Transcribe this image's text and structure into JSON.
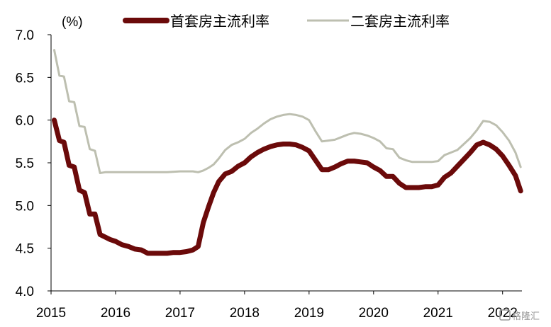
{
  "chart_data": {
    "type": "line",
    "unit_label": "(%)",
    "ylim": [
      4.0,
      7.0
    ],
    "yticks": [
      "4.0",
      "4.5",
      "5.0",
      "5.5",
      "6.0",
      "6.5",
      "7.0"
    ],
    "xlim": [
      2015.0,
      2022.3
    ],
    "xticks": [
      "2015",
      "2016",
      "2017",
      "2018",
      "2019",
      "2020",
      "2021",
      "2022"
    ],
    "legend_position": "top",
    "grid": false,
    "series": [
      {
        "name": "首套房主流利率",
        "color": "#6b0a0a",
        "x": [
          2015.05,
          2015.13,
          2015.2,
          2015.28,
          2015.36,
          2015.44,
          2015.52,
          2015.6,
          2015.68,
          2015.76,
          2015.84,
          2015.92,
          2016.0,
          2016.1,
          2016.2,
          2016.3,
          2016.4,
          2016.5,
          2016.6,
          2016.7,
          2016.8,
          2016.9,
          2017.0,
          2017.1,
          2017.2,
          2017.28,
          2017.36,
          2017.44,
          2017.52,
          2017.6,
          2017.7,
          2017.8,
          2017.9,
          2018.0,
          2018.1,
          2018.2,
          2018.3,
          2018.4,
          2018.5,
          2018.6,
          2018.7,
          2018.8,
          2018.9,
          2019.0,
          2019.1,
          2019.2,
          2019.3,
          2019.4,
          2019.5,
          2019.6,
          2019.7,
          2019.8,
          2019.9,
          2020.0,
          2020.1,
          2020.2,
          2020.3,
          2020.4,
          2020.5,
          2020.6,
          2020.7,
          2020.8,
          2020.9,
          2021.0,
          2021.1,
          2021.2,
          2021.3,
          2021.4,
          2021.5,
          2021.6,
          2021.7,
          2021.8,
          2021.9,
          2022.0,
          2022.1,
          2022.2,
          2022.28
        ],
        "values": [
          6.0,
          5.76,
          5.74,
          5.47,
          5.45,
          5.18,
          5.15,
          4.9,
          4.9,
          4.66,
          4.63,
          4.6,
          4.58,
          4.54,
          4.52,
          4.49,
          4.48,
          4.44,
          4.44,
          4.44,
          4.44,
          4.45,
          4.45,
          4.46,
          4.48,
          4.52,
          4.8,
          4.98,
          5.15,
          5.28,
          5.37,
          5.4,
          5.46,
          5.5,
          5.57,
          5.62,
          5.66,
          5.69,
          5.71,
          5.72,
          5.72,
          5.71,
          5.68,
          5.64,
          5.53,
          5.42,
          5.42,
          5.45,
          5.49,
          5.52,
          5.52,
          5.51,
          5.5,
          5.45,
          5.41,
          5.34,
          5.34,
          5.26,
          5.21,
          5.21,
          5.21,
          5.22,
          5.22,
          5.24,
          5.33,
          5.38,
          5.46,
          5.54,
          5.62,
          5.71,
          5.74,
          5.71,
          5.66,
          5.58,
          5.47,
          5.35,
          5.17
        ]
      },
      {
        "name": "二套房主流利率",
        "color": "#bdbfb0",
        "x": [
          2015.05,
          2015.13,
          2015.2,
          2015.28,
          2015.36,
          2015.44,
          2015.52,
          2015.6,
          2015.68,
          2015.76,
          2015.84,
          2015.92,
          2016.0,
          2016.2,
          2016.4,
          2016.6,
          2016.8,
          2017.0,
          2017.1,
          2017.2,
          2017.28,
          2017.36,
          2017.44,
          2017.52,
          2017.6,
          2017.7,
          2017.8,
          2017.9,
          2018.0,
          2018.1,
          2018.2,
          2018.3,
          2018.4,
          2018.5,
          2018.6,
          2018.7,
          2018.8,
          2018.9,
          2019.0,
          2019.1,
          2019.2,
          2019.3,
          2019.4,
          2019.5,
          2019.6,
          2019.7,
          2019.8,
          2019.9,
          2020.0,
          2020.1,
          2020.2,
          2020.3,
          2020.4,
          2020.5,
          2020.6,
          2020.7,
          2020.8,
          2020.9,
          2021.0,
          2021.1,
          2021.2,
          2021.3,
          2021.4,
          2021.5,
          2021.6,
          2021.7,
          2021.8,
          2021.9,
          2022.0,
          2022.1,
          2022.2,
          2022.28
        ],
        "values": [
          6.82,
          6.52,
          6.51,
          6.22,
          6.21,
          5.93,
          5.92,
          5.66,
          5.64,
          5.38,
          5.39,
          5.39,
          5.39,
          5.39,
          5.39,
          5.39,
          5.39,
          5.4,
          5.4,
          5.4,
          5.39,
          5.41,
          5.44,
          5.48,
          5.55,
          5.65,
          5.71,
          5.74,
          5.78,
          5.85,
          5.9,
          5.96,
          6.01,
          6.04,
          6.06,
          6.07,
          6.06,
          6.04,
          6.0,
          5.87,
          5.75,
          5.76,
          5.77,
          5.8,
          5.83,
          5.85,
          5.84,
          5.82,
          5.79,
          5.75,
          5.67,
          5.66,
          5.56,
          5.53,
          5.51,
          5.51,
          5.51,
          5.51,
          5.52,
          5.59,
          5.62,
          5.65,
          5.72,
          5.79,
          5.88,
          5.99,
          5.98,
          5.94,
          5.86,
          5.76,
          5.62,
          5.45
        ]
      }
    ]
  },
  "watermark": {
    "text": "格隆汇"
  }
}
